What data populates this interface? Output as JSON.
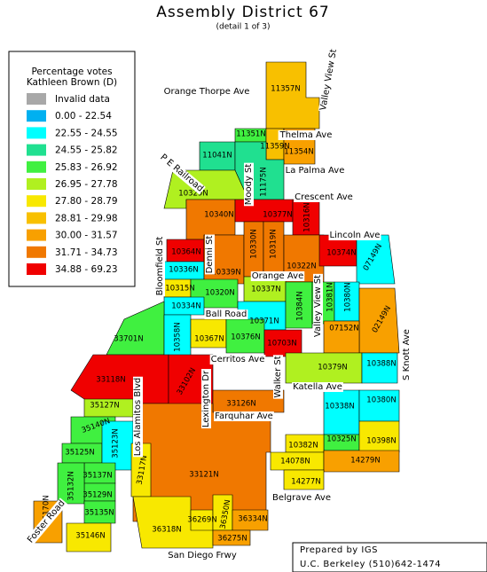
{
  "title": "Assembly District 67",
  "subtitle": "(detail 1 of 3)",
  "legend": {
    "title": [
      "Percentage votes",
      "Kathleen Brown (D)"
    ],
    "items": [
      {
        "label": "Invalid data",
        "color": "#a8a8a8"
      },
      {
        "label": "0.00 - 22.54",
        "color": "#00b0f0"
      },
      {
        "label": "22.55 - 24.55",
        "color": "#00ffff"
      },
      {
        "label": "24.55 - 25.82",
        "color": "#20e090"
      },
      {
        "label": "25.83 - 26.92",
        "color": "#40f040"
      },
      {
        "label": "26.95 - 27.78",
        "color": "#b0f020"
      },
      {
        "label": "27.80 - 28.79",
        "color": "#f8e800"
      },
      {
        "label": "28.81 - 29.98",
        "color": "#f8c000"
      },
      {
        "label": "30.00 - 31.57",
        "color": "#f8a000"
      },
      {
        "label": "31.71 - 34.73",
        "color": "#f07800"
      },
      {
        "label": "34.88 - 69.23",
        "color": "#f00000"
      }
    ]
  },
  "precincts": [
    {
      "label": "11357N",
      "color": "#f8c000"
    },
    {
      "label": "11351N",
      "color": "#40f040"
    },
    {
      "label": "11359N",
      "color": "#f8c000"
    },
    {
      "label": "11354N",
      "color": "#f8a000"
    },
    {
      "label": "11041N",
      "color": "#20e090"
    },
    {
      "label": "11175N",
      "color": "#20e090"
    },
    {
      "label": "10329N",
      "color": "#b0f020"
    },
    {
      "label": "10340N",
      "color": "#f07800"
    },
    {
      "label": "10377N",
      "color": "#f00000"
    },
    {
      "label": "10316N",
      "color": "#f00000"
    },
    {
      "label": "10364N",
      "color": "#f00000"
    },
    {
      "label": "10336N",
      "color": "#00ffff"
    },
    {
      "label": "10339N",
      "color": "#f07800"
    },
    {
      "label": "10330N",
      "color": "#f07800"
    },
    {
      "label": "10319N",
      "color": "#f07800"
    },
    {
      "label": "10322N",
      "color": "#f07800"
    },
    {
      "label": "10374N",
      "color": "#f00000"
    },
    {
      "label": "07149N",
      "color": "#00ffff"
    },
    {
      "label": "10315N",
      "color": "#f8e800"
    },
    {
      "label": "10320N",
      "color": "#40f040"
    },
    {
      "label": "10337N",
      "color": "#b0f020"
    },
    {
      "label": "10334N",
      "color": "#00ffff"
    },
    {
      "label": "10371N",
      "color": "#00ffff"
    },
    {
      "label": "10384N",
      "color": "#40f040"
    },
    {
      "label": "10381N",
      "color": "#40f040"
    },
    {
      "label": "10380N",
      "color": "#00ffff"
    },
    {
      "label": "02149N",
      "color": "#f8a000"
    },
    {
      "label": "07152N",
      "color": "#f8a000"
    },
    {
      "label": "33701N",
      "color": "#40f040"
    },
    {
      "label": "10358N",
      "color": "#00ffff"
    },
    {
      "label": "10367N",
      "color": "#f8e800"
    },
    {
      "label": "10376N",
      "color": "#40f040"
    },
    {
      "label": "10703N",
      "color": "#f00000"
    },
    {
      "label": "10379N",
      "color": "#b0f020"
    },
    {
      "label": "10388N",
      "color": "#00ffff"
    },
    {
      "label": "33118N",
      "color": "#f00000"
    },
    {
      "label": "33102N",
      "color": "#f00000"
    },
    {
      "label": "33126N",
      "color": "#f07800"
    },
    {
      "label": "33121N",
      "color": "#f07800"
    },
    {
      "label": "35127N",
      "color": "#b0f020"
    },
    {
      "label": "35140N",
      "color": "#40f040"
    },
    {
      "label": "35125N",
      "color": "#40f040"
    },
    {
      "label": "35123N",
      "color": "#00ffff"
    },
    {
      "label": "33117N",
      "color": "#f8e800"
    },
    {
      "label": "35137N",
      "color": "#40f040"
    },
    {
      "label": "35129N",
      "color": "#40f040"
    },
    {
      "label": "35132N",
      "color": "#40f040"
    },
    {
      "label": "35135N",
      "color": "#40f040"
    },
    {
      "label": "35146N",
      "color": "#f8e800"
    },
    {
      "label": "35170N",
      "color": "#f8a000"
    },
    {
      "label": "10338N",
      "color": "#00ffff"
    },
    {
      "label": "10380N",
      "color": "#00ffff"
    },
    {
      "label": "10325N",
      "color": "#40f040"
    },
    {
      "label": "10382N",
      "color": "#f8e800"
    },
    {
      "label": "10398N",
      "color": "#f8e800"
    },
    {
      "label": "14078N",
      "color": "#f8e800"
    },
    {
      "label": "14279N",
      "color": "#f8a000"
    },
    {
      "label": "14277N",
      "color": "#f8e800"
    },
    {
      "label": "36318N",
      "color": "#f8e800"
    },
    {
      "label": "36269N",
      "color": "#f8e800"
    },
    {
      "label": "36350N",
      "color": "#f8e800"
    },
    {
      "label": "36334N",
      "color": "#f8a000"
    },
    {
      "label": "36275N",
      "color": "#f8a000"
    }
  ],
  "streets": [
    "Orange Thorpe Ave",
    "Valley View St",
    "Thelma Ave",
    "La Palma Ave",
    "P E Railroad",
    "Moody St",
    "Crescent Ave",
    "Lincoln Ave",
    "Bloomfield St",
    "Denni St",
    "Orange Ave",
    "Ball Road",
    "Valley View St",
    "S Knott Ave",
    "Cerritos Ave",
    "Walker St",
    "Katella Ave",
    "Los Alamitos Blvd",
    "Lexington Dr",
    "Farquhar Ave",
    "Foster Road",
    "Belgrave Ave",
    "San Diego Frwy"
  ],
  "credit": [
    "Prepared by IGS",
    "U.C. Berkeley (510)642-1474"
  ]
}
